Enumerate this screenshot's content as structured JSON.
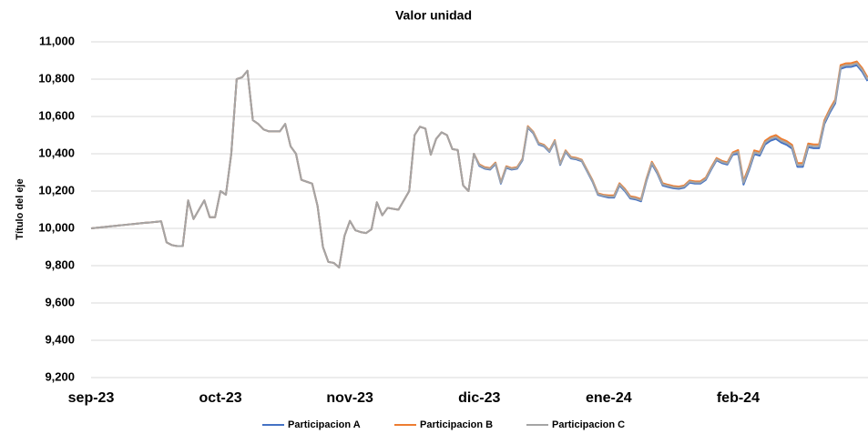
{
  "chart_data": {
    "type": "line",
    "title": "Valor unidad",
    "y_label": "Título del eje",
    "categories": [
      "sep-23",
      null,
      null,
      null,
      null,
      null,
      null,
      null,
      null,
      null,
      null,
      null,
      null,
      null,
      null,
      null,
      null,
      null,
      null,
      null,
      null,
      null,
      null,
      null,
      "oct-23",
      null,
      null,
      null,
      null,
      null,
      null,
      null,
      null,
      null,
      null,
      null,
      null,
      null,
      null,
      null,
      null,
      null,
      null,
      null,
      null,
      null,
      null,
      null,
      "nov-23",
      null,
      null,
      null,
      null,
      null,
      null,
      null,
      null,
      null,
      null,
      null,
      null,
      null,
      null,
      null,
      null,
      null,
      null,
      null,
      null,
      null,
      null,
      null,
      "dic-23",
      null,
      null,
      null,
      null,
      null,
      null,
      null,
      null,
      null,
      null,
      null,
      null,
      null,
      null,
      null,
      null,
      null,
      null,
      null,
      null,
      null,
      null,
      null,
      "ene-24",
      null,
      null,
      null,
      null,
      null,
      null,
      null,
      null,
      null,
      null,
      null,
      null,
      null,
      null,
      null,
      null,
      null,
      null,
      null,
      null,
      null,
      null,
      null,
      "feb-24",
      null,
      null,
      null,
      null,
      null,
      null,
      null,
      null,
      null,
      null,
      null,
      null,
      null,
      null,
      null,
      null,
      null,
      null,
      null,
      null,
      null,
      null,
      null,
      null
    ],
    "series": [
      {
        "name": "Participacion A",
        "color": "#4472c4",
        "values": [
          10000,
          10003,
          10006,
          10009,
          10012,
          10015,
          10018,
          10021,
          10024,
          10027,
          10030,
          10032,
          10035,
          10038,
          9925,
          9910,
          9905,
          9905,
          10150,
          10050,
          10100,
          10150,
          10060,
          10060,
          10200,
          10180,
          10400,
          10800,
          10810,
          10845,
          10580,
          10560,
          10530,
          10520,
          10520,
          10520,
          10560,
          10440,
          10400,
          10260,
          10250,
          10240,
          10120,
          9900,
          9820,
          9815,
          9790,
          9960,
          10040,
          9990,
          9980,
          9975,
          9995,
          10140,
          10070,
          10110,
          10105,
          10100,
          10150,
          10200,
          10500,
          10545,
          10535,
          10395,
          10480,
          10515,
          10500,
          10425,
          10420,
          10230,
          10200,
          10400,
          10335,
          10320,
          10315,
          10345,
          10240,
          10325,
          10315,
          10320,
          10365,
          10540,
          10510,
          10450,
          10440,
          10410,
          10465,
          10340,
          10410,
          10375,
          10370,
          10360,
          10305,
          10250,
          10180,
          10172,
          10165,
          10165,
          10230,
          10200,
          10160,
          10155,
          10145,
          10255,
          10345,
          10295,
          10230,
          10222,
          10215,
          10212,
          10218,
          10245,
          10240,
          10240,
          10260,
          10315,
          10365,
          10350,
          10342,
          10395,
          10400,
          10235,
          10310,
          10398,
          10390,
          10450,
          10470,
          10480,
          10460,
          10448,
          10428,
          10330,
          10330,
          10435,
          10430,
          10430,
          10560,
          10620,
          10670,
          10855,
          10865,
          10866,
          10875,
          10840,
          10790
        ]
      },
      {
        "name": "Participacion B",
        "color": "#ed7d31",
        "values": [
          10000,
          10003,
          10006,
          10009,
          10012,
          10015,
          10018,
          10021,
          10024,
          10027,
          10030,
          10032,
          10035,
          10038,
          9925,
          9910,
          9905,
          9905,
          10150,
          10050,
          10100,
          10150,
          10060,
          10060,
          10200,
          10180,
          10400,
          10800,
          10810,
          10845,
          10580,
          10560,
          10530,
          10520,
          10520,
          10520,
          10560,
          10440,
          10400,
          10260,
          10250,
          10240,
          10120,
          9900,
          9820,
          9815,
          9790,
          9960,
          10040,
          9990,
          9980,
          9975,
          9995,
          10140,
          10070,
          10110,
          10105,
          10100,
          10150,
          10200,
          10500,
          10545,
          10535,
          10395,
          10480,
          10515,
          10500,
          10425,
          10420,
          10230,
          10200,
          10400,
          10343,
          10328,
          10323,
          10353,
          10248,
          10333,
          10323,
          10328,
          10373,
          10548,
          10518,
          10458,
          10448,
          10418,
          10473,
          10348,
          10418,
          10383,
          10378,
          10368,
          10313,
          10258,
          10188,
          10180,
          10177,
          10177,
          10242,
          10212,
          10172,
          10167,
          10157,
          10267,
          10357,
          10307,
          10242,
          10234,
          10227,
          10224,
          10230,
          10257,
          10252,
          10252,
          10272,
          10327,
          10377,
          10362,
          10354,
          10407,
          10420,
          10255,
          10330,
          10418,
          10410,
          10470,
          10490,
          10500,
          10480,
          10468,
          10448,
          10350,
          10350,
          10455,
          10450,
          10450,
          10580,
          10640,
          10690,
          10875,
          10885,
          10886,
          10895,
          10860,
          10810
        ]
      },
      {
        "name": "Participacion C",
        "color": "#a5a5a5",
        "values": [
          10000,
          10003,
          10006,
          10009,
          10012,
          10015,
          10018,
          10021,
          10024,
          10027,
          10030,
          10032,
          10035,
          10038,
          9925,
          9910,
          9905,
          9905,
          10150,
          10050,
          10100,
          10150,
          10060,
          10060,
          10200,
          10180,
          10400,
          10800,
          10810,
          10845,
          10580,
          10560,
          10530,
          10520,
          10520,
          10520,
          10560,
          10440,
          10400,
          10260,
          10250,
          10240,
          10120,
          9900,
          9820,
          9815,
          9790,
          9960,
          10040,
          9990,
          9980,
          9975,
          9995,
          10140,
          10070,
          10110,
          10105,
          10100,
          10150,
          10200,
          10500,
          10545,
          10535,
          10395,
          10480,
          10515,
          10500,
          10425,
          10420,
          10230,
          10200,
          10400,
          10339,
          10324,
          10319,
          10349,
          10244,
          10329,
          10319,
          10324,
          10369,
          10544,
          10514,
          10454,
          10444,
          10414,
          10469,
          10344,
          10414,
          10379,
          10374,
          10364,
          10309,
          10254,
          10184,
          10176,
          10171,
          10171,
          10236,
          10206,
          10166,
          10161,
          10151,
          10261,
          10351,
          10301,
          10236,
          10228,
          10221,
          10218,
          10224,
          10251,
          10246,
          10246,
          10266,
          10321,
          10371,
          10356,
          10348,
          10401,
          10410,
          10245,
          10320,
          10408,
          10400,
          10460,
          10480,
          10490,
          10470,
          10458,
          10438,
          10340,
          10340,
          10445,
          10440,
          10440,
          10570,
          10630,
          10680,
          10865,
          10875,
          10876,
          10885,
          10850,
          10800
        ]
      }
    ],
    "ylim": [
      9200,
      11000
    ],
    "yticks": [
      {
        "value": 9200,
        "label": "9,200"
      },
      {
        "value": 9400,
        "label": "9,400"
      },
      {
        "value": 9600,
        "label": "9,600"
      },
      {
        "value": 9800,
        "label": "9,800"
      },
      {
        "value": 10000,
        "label": "10,000"
      },
      {
        "value": 10200,
        "label": "10,200"
      },
      {
        "value": 10400,
        "label": "10,400"
      },
      {
        "value": 10600,
        "label": "10,600"
      },
      {
        "value": 10800,
        "label": "10,800"
      },
      {
        "value": 11000,
        "label": "11,000"
      }
    ],
    "grid": true,
    "legend": "bottom"
  }
}
